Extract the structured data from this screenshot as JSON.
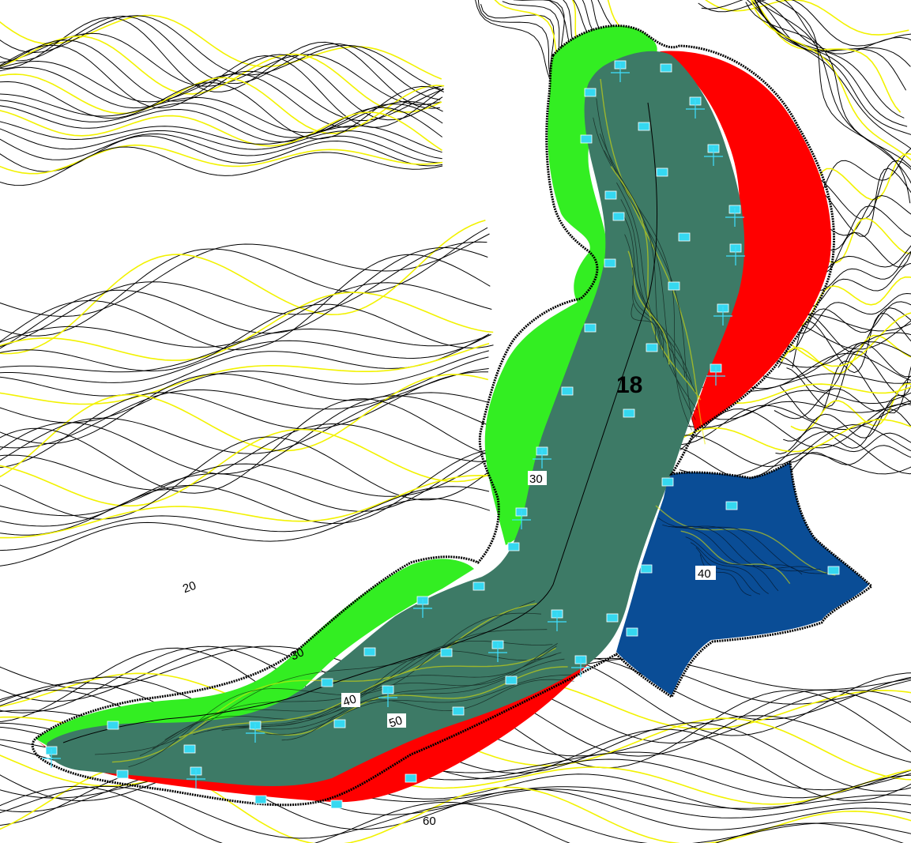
{
  "map": {
    "zone_label": "18",
    "contour_labels": [
      "20",
      "30",
      "30",
      "40",
      "40",
      "50",
      "60"
    ],
    "colors": {
      "background": "#ffffff",
      "contour_minor": "#000000",
      "contour_major": "#f2f200",
      "fill_side_a": "#33ee22",
      "cut_side": "#ff0000",
      "pit_floor": "#3d7a66",
      "water_pond": "#0a4d96",
      "survey_marker": "#35d8f0"
    },
    "regions": [
      "green-fill-zone",
      "red-cut-zone",
      "dark-green-floor",
      "blue-pond"
    ]
  }
}
